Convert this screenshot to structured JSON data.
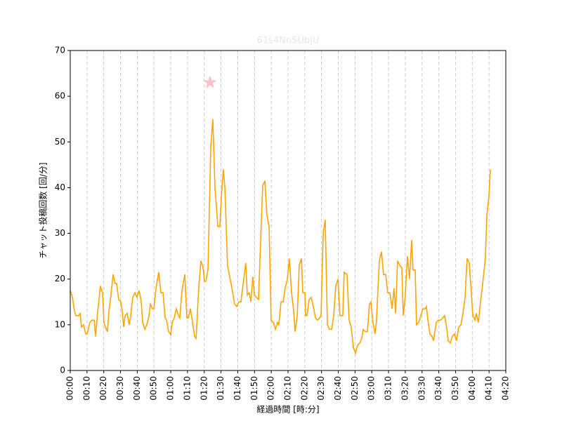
{
  "chart_data": {
    "type": "line",
    "title": "61s4NnSUbjU",
    "xlabel": "経過時間 [時:分]",
    "ylabel": "チャット投稿回数 [回/分]",
    "color": "#ffa500",
    "x": [
      0,
      1.3,
      2.5,
      3.4,
      5.0,
      5.9,
      6.7,
      8.0,
      9.2,
      10.1,
      11.7,
      13.0,
      14.3,
      15.1,
      16.4,
      18.0,
      19.3,
      20.1,
      21.0,
      22.2,
      23.1,
      24.3,
      25.6,
      26.8,
      27.7,
      28.9,
      30.2,
      31.0,
      31.9,
      32.7,
      34.0,
      35.2,
      36.1,
      37.3,
      38.6,
      39.8,
      41.1,
      42.4,
      43.2,
      44.5,
      45.7,
      47.0,
      47.8,
      49.1,
      49.9,
      51.2,
      52.8,
      54.1,
      55.4,
      56.6,
      57.5,
      58.7,
      60.0,
      60.8,
      62.1,
      63.3,
      64.6,
      65.4,
      66.7,
      68.4,
      69.6,
      70.5,
      71.7,
      73.0,
      74.2,
      75.1,
      76.7,
      78.0,
      79.3,
      80.1,
      80.9,
      82.2,
      83.9,
      85.1,
      86.4,
      88.1,
      89.3,
      90.2,
      91.4,
      92.3,
      93.9,
      95.2,
      96.5,
      98.1,
      99.4,
      100.6,
      101.9,
      103.2,
      104.8,
      105.7,
      106.9,
      107.8,
      109.0,
      109.9,
      111.1,
      112.4,
      113.6,
      114.9,
      116.2,
      117.4,
      118.7,
      119.9,
      121.2,
      122.5,
      123.7,
      124.5,
      125.8,
      127.1,
      128.3,
      129.6,
      130.8,
      132.1,
      133.4,
      134.2,
      135.5,
      136.7,
      138.0,
      138.8,
      140.1,
      140.5,
      141.3,
      142.6,
      143.8,
      145.1,
      146.4,
      147.6,
      148.9,
      149.7,
      151.0,
      152.2,
      153.5,
      154.7,
      156.0,
      157.3,
      158.5,
      159.8,
      161.0,
      162.7,
      163.5,
      165.2,
      166.5,
      167.7,
      169.0,
      170.3,
      171.5,
      172.8,
      174.0,
      174.9,
      176.1,
      177.4,
      178.6,
      179.5,
      180.7,
      182.0,
      182.8,
      184.5,
      185.8,
      187.0,
      188.3,
      189.5,
      190.8,
      192.1,
      193.3,
      194.2,
      195.4,
      196.7,
      197.9,
      198.8,
      200.0,
      201.3,
      202.5,
      203.8,
      204.6,
      205.9,
      206.7,
      208.0,
      209.3,
      210.5,
      211.8,
      212.6,
      213.5,
      214.7,
      216.0,
      216.8,
      218.5,
      219.7,
      221.0,
      222.3,
      223.5,
      224.8,
      225.6,
      226.9,
      228.1,
      229.4,
      230.6,
      231.9,
      233.2,
      234.4,
      235.7,
      236.9,
      238.2,
      239.4,
      240.3,
      241.6,
      242.4,
      243.6,
      244.9,
      246.2,
      247.8,
      248.7,
      249.9,
      250.8
    ],
    "values": [
      17.5,
      16,
      13,
      12,
      12,
      12.5,
      9.5,
      10,
      8,
      8,
      10.5,
      11,
      11,
      7.5,
      13,
      18.5,
      17,
      10.5,
      9.5,
      8.5,
      13,
      16.5,
      21,
      19,
      19,
      15.5,
      15,
      13,
      9.5,
      12,
      12.5,
      10,
      12,
      16,
      17,
      16,
      17.5,
      15,
      10.5,
      9,
      10,
      12,
      14.5,
      13.5,
      13.5,
      18,
      21.5,
      17,
      17,
      11.5,
      11,
      8.5,
      7.8,
      10.5,
      11.5,
      13.5,
      12,
      11.5,
      17.5,
      21,
      11.5,
      11.5,
      13.5,
      10.5,
      7.5,
      7,
      18,
      24,
      22.5,
      19.5,
      19.5,
      22,
      49,
      55,
      40,
      31.5,
      31.5,
      38,
      44,
      40,
      23,
      20.5,
      18,
      14.5,
      14,
      15,
      15,
      19,
      23.5,
      16.5,
      17,
      15,
      20.5,
      16.5,
      16,
      15.5,
      28,
      40.5,
      41.5,
      34,
      31.5,
      11,
      10.5,
      9,
      10.5,
      10,
      15,
      15,
      18,
      20,
      24.5,
      17,
      13,
      8.5,
      12,
      23,
      24.5,
      17,
      17,
      12,
      12,
      15.5,
      16,
      14,
      11.5,
      11,
      11.5,
      12,
      30,
      33,
      10,
      9,
      9,
      12,
      18.5,
      20,
      12,
      12,
      21.5,
      21,
      11,
      9.5,
      5,
      3.8,
      5.5,
      6,
      7,
      9,
      8.5,
      8.5,
      14.5,
      15,
      10.5,
      8,
      11,
      24,
      26,
      21,
      21,
      17,
      17,
      13.5,
      18,
      12.5,
      24,
      23,
      22.5,
      12,
      16.5,
      25,
      20,
      28.5,
      22,
      22,
      10,
      10.5,
      12,
      13.5,
      13.5,
      14,
      11,
      8,
      7.5,
      6.5,
      10.5,
      11,
      11,
      11.5,
      12,
      9,
      6.5,
      6,
      7.5,
      8,
      6.5,
      9.5,
      10,
      12.5,
      16,
      24.5,
      23.5,
      17,
      12,
      11,
      12.5,
      10.5,
      15,
      19,
      24.5,
      34,
      38,
      44
    ],
    "marker": {
      "x": 83.4,
      "y": 63,
      "color": "#ffc0cb"
    },
    "xlim": [
      0,
      260
    ],
    "ylim": [
      0,
      70
    ],
    "xticks": [
      {
        "value": 0,
        "label": "00:00"
      },
      {
        "value": 10,
        "label": "00:10"
      },
      {
        "value": 20,
        "label": "00:20"
      },
      {
        "value": 30,
        "label": "00:30"
      },
      {
        "value": 40,
        "label": "00:40"
      },
      {
        "value": 50,
        "label": "00:50"
      },
      {
        "value": 60,
        "label": "01:00"
      },
      {
        "value": 70,
        "label": "01:10"
      },
      {
        "value": 80,
        "label": "01:20"
      },
      {
        "value": 90,
        "label": "01:30"
      },
      {
        "value": 100,
        "label": "01:40"
      },
      {
        "value": 110,
        "label": "01:50"
      },
      {
        "value": 120,
        "label": "02:00"
      },
      {
        "value": 130,
        "label": "02:10"
      },
      {
        "value": 140,
        "label": "02:20"
      },
      {
        "value": 150,
        "label": "02:30"
      },
      {
        "value": 160,
        "label": "02:40"
      },
      {
        "value": 170,
        "label": "02:50"
      },
      {
        "value": 180,
        "label": "03:00"
      },
      {
        "value": 190,
        "label": "03:10"
      },
      {
        "value": 200,
        "label": "03:20"
      },
      {
        "value": 210,
        "label": "03:30"
      },
      {
        "value": 220,
        "label": "03:40"
      },
      {
        "value": 230,
        "label": "03:50"
      },
      {
        "value": 240,
        "label": "04:00"
      },
      {
        "value": 250,
        "label": "04:10"
      },
      {
        "value": 260,
        "label": "04:20"
      }
    ],
    "yticks": [
      0,
      10,
      20,
      30,
      40,
      50,
      60,
      70
    ],
    "xgrid": true
  }
}
